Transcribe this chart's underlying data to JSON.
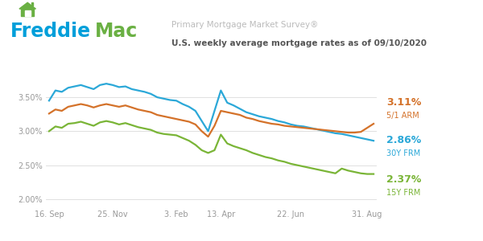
{
  "title_line1": "Primary Mortgage Market Survey®",
  "title_line2": "U.S. weekly average mortgage rates as of 09/10/2020",
  "x_labels": [
    "16. Sep",
    "25. Nov",
    "3. Feb",
    "13. Apr",
    "22. Jun",
    "31. Aug"
  ],
  "y_ticks": [
    2.0,
    2.5,
    3.0,
    3.5
  ],
  "y_labels": [
    "2.00%",
    "2.50%",
    "3.00%",
    "3.50%"
  ],
  "ylim": [
    1.88,
    3.85
  ],
  "color_30y": "#2ba8d8",
  "color_15y": "#7ab537",
  "color_arm": "#d4722a",
  "bg_color": "#ffffff",
  "grid_color": "#e0e0e0",
  "freddie_blue": "#009fda",
  "freddie_green": "#6ab043",
  "freddie_mac_blue": "#009fda",
  "sep_line_color": "#e0e0e0",
  "frm30": [
    3.45,
    3.6,
    3.58,
    3.64,
    3.66,
    3.68,
    3.65,
    3.62,
    3.68,
    3.7,
    3.68,
    3.65,
    3.66,
    3.62,
    3.6,
    3.58,
    3.55,
    3.5,
    3.48,
    3.46,
    3.45,
    3.4,
    3.36,
    3.3,
    3.15,
    3.0,
    3.3,
    3.6,
    3.42,
    3.38,
    3.33,
    3.28,
    3.25,
    3.22,
    3.2,
    3.18,
    3.15,
    3.13,
    3.1,
    3.08,
    3.07,
    3.05,
    3.03,
    3.01,
    2.99,
    2.97,
    2.96,
    2.94,
    2.92,
    2.9,
    2.88,
    2.86
  ],
  "frm15": [
    3.0,
    3.07,
    3.05,
    3.11,
    3.12,
    3.14,
    3.11,
    3.08,
    3.13,
    3.15,
    3.13,
    3.1,
    3.12,
    3.09,
    3.06,
    3.04,
    3.02,
    2.98,
    2.96,
    2.95,
    2.94,
    2.9,
    2.86,
    2.8,
    2.72,
    2.68,
    2.72,
    2.95,
    2.82,
    2.78,
    2.75,
    2.72,
    2.68,
    2.65,
    2.62,
    2.6,
    2.57,
    2.55,
    2.52,
    2.5,
    2.48,
    2.46,
    2.44,
    2.42,
    2.4,
    2.38,
    2.45,
    2.42,
    2.4,
    2.38,
    2.37,
    2.37
  ],
  "arm51": [
    3.26,
    3.32,
    3.3,
    3.36,
    3.38,
    3.4,
    3.38,
    3.35,
    3.38,
    3.4,
    3.38,
    3.36,
    3.38,
    3.35,
    3.32,
    3.3,
    3.28,
    3.24,
    3.22,
    3.2,
    3.18,
    3.16,
    3.14,
    3.1,
    3.0,
    2.92,
    3.08,
    3.3,
    3.28,
    3.26,
    3.24,
    3.2,
    3.18,
    3.15,
    3.13,
    3.11,
    3.1,
    3.08,
    3.07,
    3.06,
    3.05,
    3.04,
    3.03,
    3.02,
    3.01,
    3.0,
    2.99,
    2.98,
    2.98,
    2.99,
    3.05,
    3.11
  ],
  "x_tick_pos": [
    0,
    10,
    20,
    27,
    38,
    50
  ]
}
